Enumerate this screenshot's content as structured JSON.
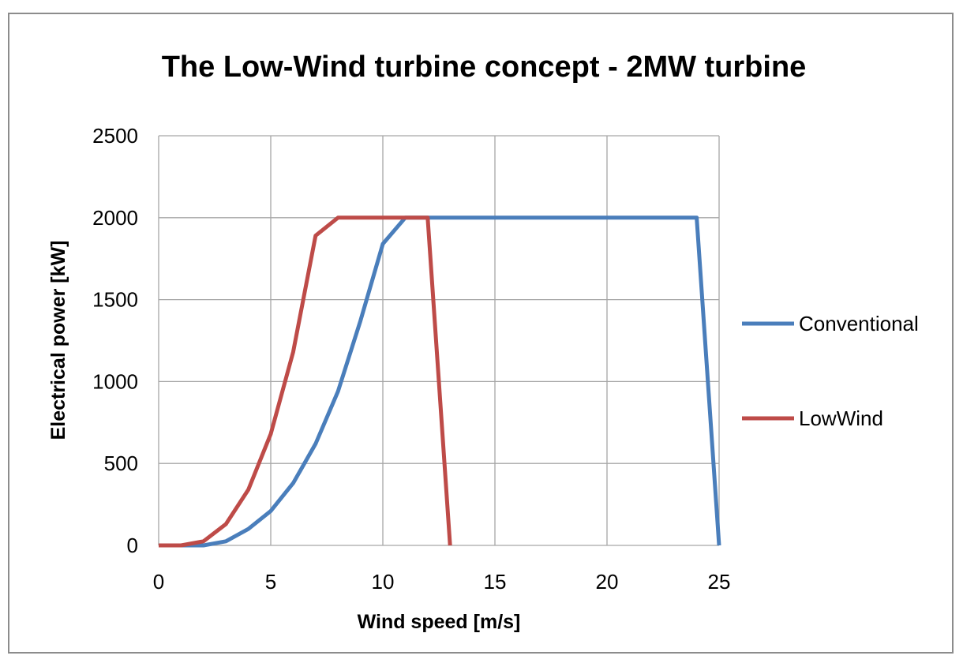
{
  "chart_data": {
    "type": "line",
    "title": "The Low-Wind turbine concept - 2MW turbine",
    "xlabel": "Wind speed [m/s]",
    "ylabel": "Electrical power [kW]",
    "xlim": [
      0,
      25
    ],
    "ylim": [
      0,
      2500
    ],
    "xticks": [
      0,
      5,
      10,
      15,
      20,
      25
    ],
    "yticks": [
      0,
      500,
      1000,
      1500,
      2000,
      2500
    ],
    "grid": true,
    "legend_position": "right",
    "series": [
      {
        "name": "Conventional",
        "color": "#4a7ebb",
        "x": [
          0,
          1,
          2,
          3,
          4,
          5,
          6,
          7,
          8,
          9,
          10,
          11,
          12,
          13,
          14,
          15,
          16,
          17,
          18,
          19,
          20,
          21,
          22,
          23,
          24,
          25
        ],
        "y": [
          0,
          0,
          0,
          25,
          100,
          210,
          380,
          620,
          940,
          1370,
          1840,
          2000,
          2000,
          2000,
          2000,
          2000,
          2000,
          2000,
          2000,
          2000,
          2000,
          2000,
          2000,
          2000,
          2000,
          0
        ]
      },
      {
        "name": "LowWind",
        "color": "#be4b48",
        "x": [
          0,
          1,
          2,
          3,
          4,
          5,
          6,
          7,
          8,
          9,
          10,
          11,
          12,
          13
        ],
        "y": [
          0,
          0,
          25,
          130,
          340,
          680,
          1180,
          1890,
          2000,
          2000,
          2000,
          2000,
          2000,
          0
        ]
      }
    ]
  }
}
